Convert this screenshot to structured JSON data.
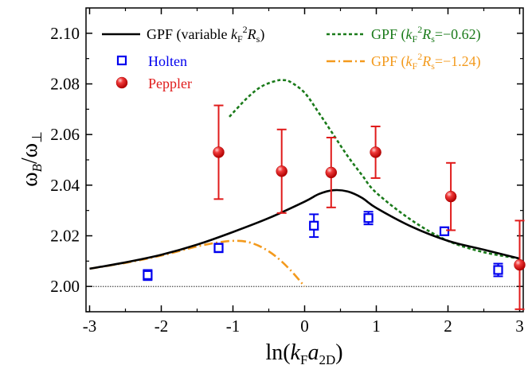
{
  "chart_data": {
    "type": "line",
    "xlabel": {
      "main": "ln(",
      "var1": "k",
      "sub1": "F",
      "var2": "a",
      "sub2": "2D",
      "close": ")"
    },
    "ylabel": {
      "w1": "ω",
      "sub1": "B",
      "slash": "/",
      "w2": "ω",
      "sub2": "⊥"
    },
    "xlim": [
      -3.05,
      3.05
    ],
    "ylim": [
      1.99,
      2.11
    ],
    "xticks": [
      "-3",
      "-2",
      "-1",
      "0",
      "1",
      "2",
      "3"
    ],
    "yticks": [
      "2.00",
      "2.02",
      "2.04",
      "2.06",
      "2.08",
      "2.10"
    ],
    "reference_line": {
      "y": 2.0,
      "style": "dotted"
    },
    "legend": {
      "gpf_var": {
        "prefix": "GPF (variable ",
        "k": "k",
        "ksub": "F",
        "ksup": "2",
        "r": "R",
        "rsub": "s",
        "suffix": ")"
      },
      "gpf_062": {
        "prefix": "GPF (",
        "k": "k",
        "ksub": "F",
        "ksup": "2",
        "r": "R",
        "rsub": "s",
        "suffix": "=−0.62)"
      },
      "gpf_124": {
        "prefix": "GPF (",
        "k": "k",
        "ksub": "F",
        "ksup": "2",
        "r": "R",
        "rsub": "s",
        "suffix": "=−1.24)"
      },
      "holten": "Holten",
      "peppler": "Peppler"
    },
    "series": [
      {
        "key": "gpf_var",
        "color": "#000000",
        "dash": "solid",
        "x": [
          -3.0,
          -2.5,
          -2.0,
          -1.5,
          -1.0,
          -0.5,
          0.0,
          0.2,
          0.4,
          0.6,
          0.8,
          1.0,
          1.5,
          2.0,
          2.5,
          3.0
        ],
        "y": [
          2.007,
          2.0095,
          2.0125,
          2.0165,
          2.0215,
          2.027,
          2.0335,
          2.0365,
          2.038,
          2.0375,
          2.035,
          2.031,
          2.0235,
          2.018,
          2.0145,
          2.011
        ]
      },
      {
        "key": "gpf_062",
        "color": "#1a7a1a",
        "dash": "4,3",
        "x": [
          -1.05,
          -0.8,
          -0.6,
          -0.4,
          -0.3,
          -0.2,
          0.0,
          0.2,
          0.4,
          0.6,
          0.8,
          1.0,
          1.5,
          2.0,
          2.5,
          3.0
        ],
        "y": [
          2.067,
          2.0745,
          2.079,
          2.0812,
          2.0815,
          2.0808,
          2.0765,
          2.0685,
          2.06,
          2.0515,
          2.044,
          2.037,
          2.026,
          2.018,
          2.0135,
          2.011
        ]
      },
      {
        "key": "gpf_124",
        "color": "#f39a1d",
        "dash": "11,4,2,4",
        "x": [
          -3.0,
          -2.5,
          -2.0,
          -1.5,
          -1.2,
          -1.0,
          -0.8,
          -0.6,
          -0.4,
          -0.2,
          0.0
        ],
        "y": [
          2.007,
          2.0093,
          2.0122,
          2.0158,
          2.0174,
          2.018,
          2.0176,
          2.0155,
          2.0118,
          2.0065,
          2.0
        ]
      }
    ],
    "holten": {
      "color": "#0000ee",
      "points": [
        {
          "x": -2.19,
          "y": 2.0045,
          "err": 0.002
        },
        {
          "x": -1.2,
          "y": 2.0152,
          "err": 0.0017
        },
        {
          "x": 0.13,
          "y": 2.024,
          "err": 0.0045
        },
        {
          "x": 0.89,
          "y": 2.027,
          "err": 0.0025
        },
        {
          "x": 1.95,
          "y": 2.0218,
          "err": 0.0015
        },
        {
          "x": 2.7,
          "y": 2.0065,
          "err": 0.0025
        }
      ]
    },
    "peppler": {
      "color": "#e01b1b",
      "points": [
        {
          "x": -1.2,
          "y": 2.053,
          "err": 0.0185
        },
        {
          "x": -0.32,
          "y": 2.0455,
          "err": 0.0165
        },
        {
          "x": 0.37,
          "y": 2.045,
          "err": 0.0138
        },
        {
          "x": 0.99,
          "y": 2.053,
          "err": 0.0102
        },
        {
          "x": 2.04,
          "y": 2.0355,
          "err": 0.0133
        },
        {
          "x": 3.0,
          "y": 2.0085,
          "err": 0.0175
        }
      ]
    }
  }
}
